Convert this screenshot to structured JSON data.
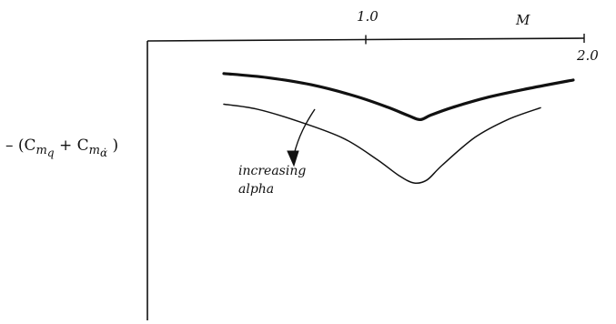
{
  "chart_data": {
    "type": "line",
    "x_axis": {
      "label": "M",
      "position": "top",
      "range": [
        0.0,
        2.0
      ],
      "ticks": [
        {
          "value": 1.0,
          "label": "1.0"
        },
        {
          "value": 2.0,
          "label": "2.0"
        }
      ]
    },
    "y_axis": {
      "label_parts": {
        "prefix": "– (C",
        "sub1": "m",
        "sub1_sub": "q",
        "plus": " + C",
        "sub2": "m",
        "sub2_sub": "α̇",
        "suffix": " )"
      },
      "numeric_scale_shown": false
    },
    "series": [
      {
        "style": "thick",
        "x": [
          0.35,
          0.55,
          0.75,
          0.95,
          1.1,
          1.2,
          1.25,
          1.3,
          1.4,
          1.55,
          1.75,
          1.95
        ],
        "y": [
          -0.55,
          -0.62,
          -0.74,
          -0.93,
          -1.12,
          -1.27,
          -1.33,
          -1.25,
          -1.12,
          -0.96,
          -0.8,
          -0.66
        ]
      },
      {
        "style": "thin",
        "x": [
          0.35,
          0.5,
          0.7,
          0.9,
          1.05,
          1.15,
          1.22,
          1.28,
          1.35,
          1.5,
          1.65,
          1.8
        ],
        "y": [
          -1.07,
          -1.15,
          -1.37,
          -1.65,
          -2.0,
          -2.27,
          -2.4,
          -2.35,
          -2.1,
          -1.63,
          -1.33,
          -1.13
        ]
      }
    ],
    "annotations": [
      {
        "lines": [
          "increasing",
          "alpha"
        ],
        "arrow": "down"
      }
    ],
    "grid": false,
    "legend": "none"
  }
}
